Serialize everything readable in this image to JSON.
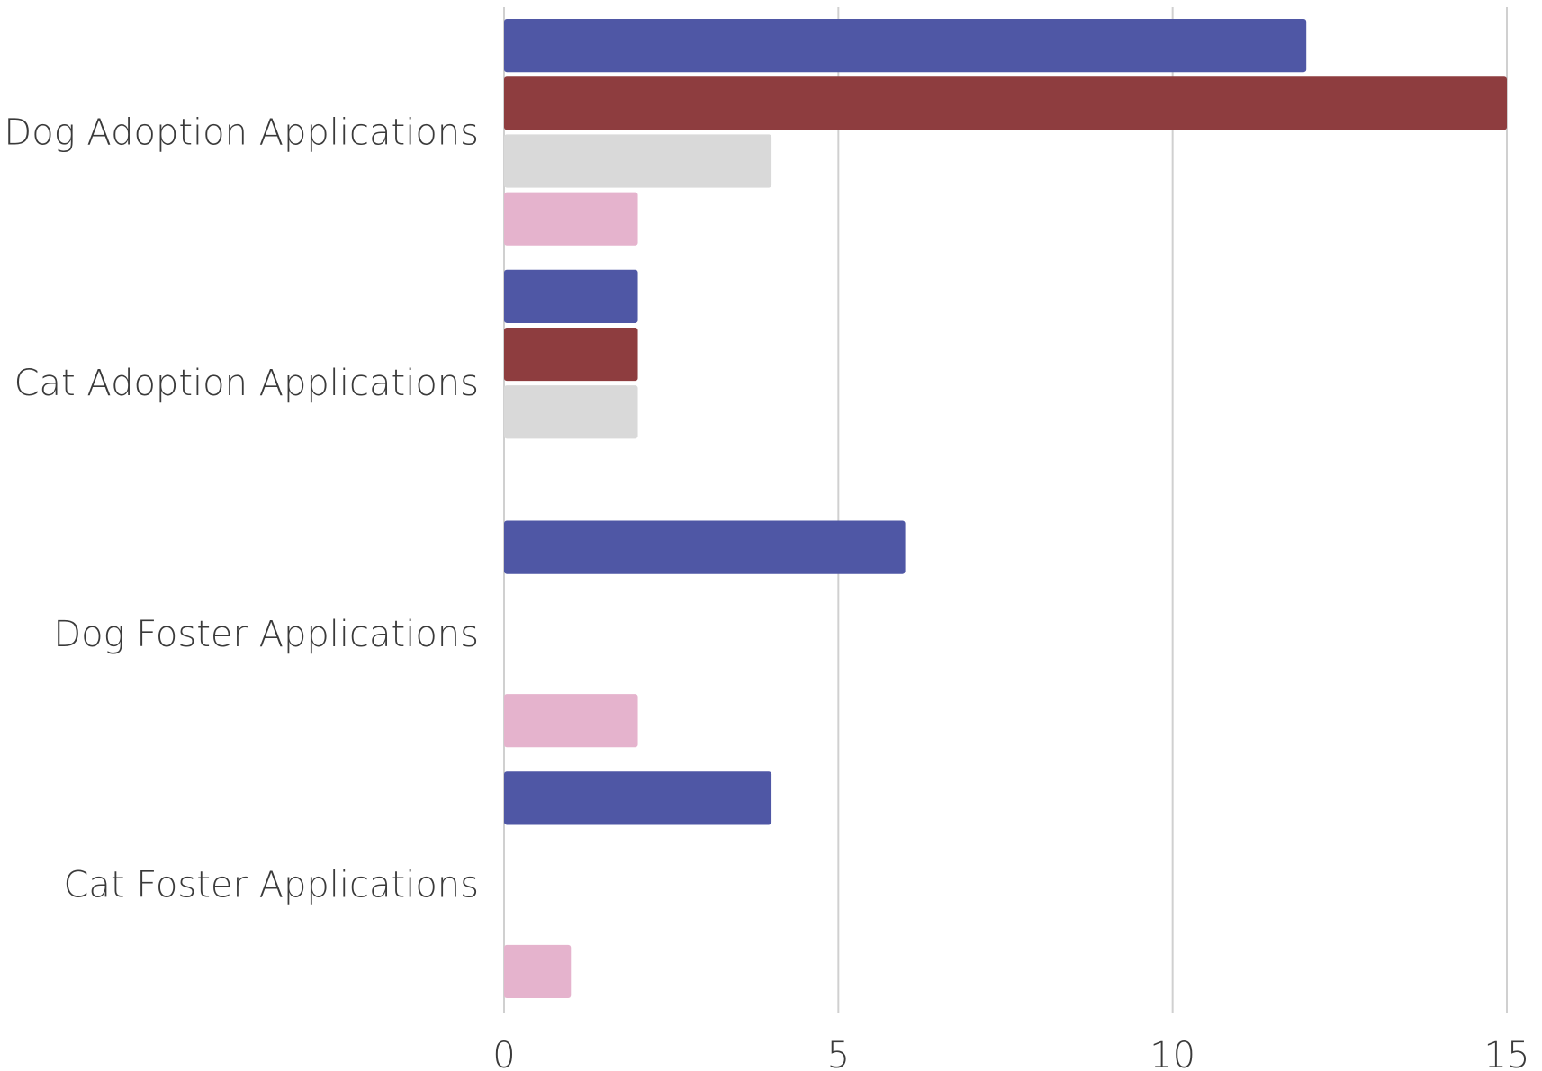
{
  "chart_data": {
    "type": "bar",
    "orientation": "horizontal",
    "categories": [
      "Dog Adoption Applications",
      "Cat Adoption Applications",
      "Dog Foster Applications",
      "Cat Foster Applications"
    ],
    "series": [
      {
        "color": "#4f57a5",
        "values": [
          12,
          2,
          6,
          4
        ]
      },
      {
        "color": "#8e3d3f",
        "values": [
          15,
          2,
          0,
          0
        ]
      },
      {
        "color": "#d9d9d9",
        "values": [
          4,
          2,
          0,
          0
        ]
      },
      {
        "color": "#e5b3cd",
        "values": [
          2,
          0,
          2,
          1
        ]
      }
    ],
    "xlim": [
      0,
      15
    ],
    "xticks": [
      0,
      5,
      10,
      15
    ],
    "grid": true
  }
}
